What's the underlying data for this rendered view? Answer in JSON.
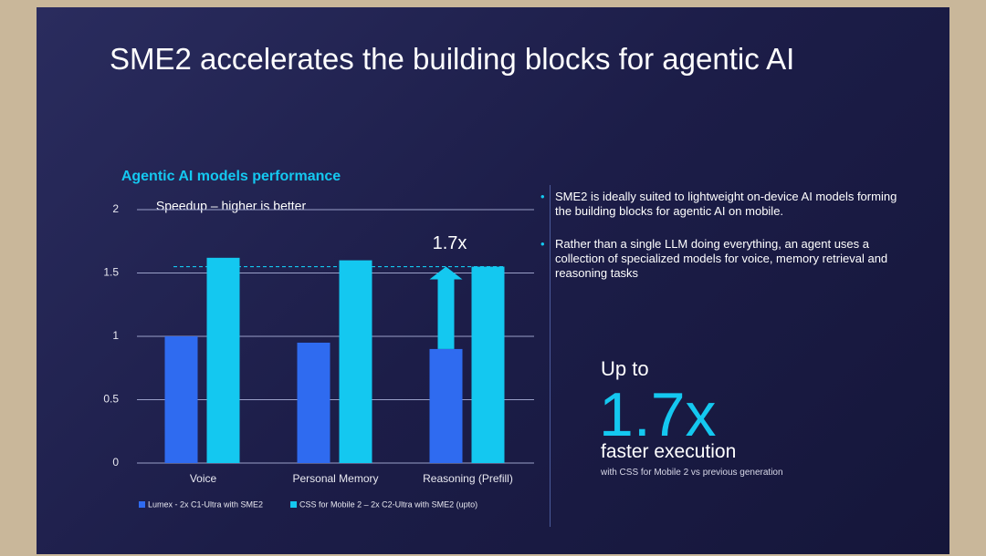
{
  "slide": {
    "title": "SME2 accelerates the building blocks for agentic AI",
    "bullets": [
      "SME2 is ideally suited to lightweight on-device AI models forming the building blocks for agentic AI on mobile.",
      "Rather than a single LLM doing everything, an agent uses a collection of specialized models for voice, memory retrieval and reasoning tasks"
    ],
    "callout": {
      "lead": "Up to",
      "big": "1.7x",
      "main": "faster execution",
      "note": "with CSS for Mobile 2 vs previous generation"
    }
  },
  "chart_data": {
    "type": "bar",
    "title": "Agentic AI models performance",
    "subtitle": "Speedup – higher is  better",
    "categories": [
      "Voice",
      "Personal Memory",
      "Reasoning (Prefill)"
    ],
    "series": [
      {
        "name": "Lumex - 2x C1-Ultra with SME2",
        "color": "#2f6bf0",
        "values": [
          1.0,
          0.95,
          0.9
        ]
      },
      {
        "name": "CSS for Mobile 2 – 2x C2-Ultra with SME2 (upto)",
        "color": "#14c8f0",
        "values": [
          1.62,
          1.6,
          1.55
        ]
      }
    ],
    "annotation": "1.7x",
    "ylim": [
      0,
      2
    ],
    "yticks": [
      0,
      0.5,
      1,
      1.5,
      2
    ],
    "grid": true
  }
}
